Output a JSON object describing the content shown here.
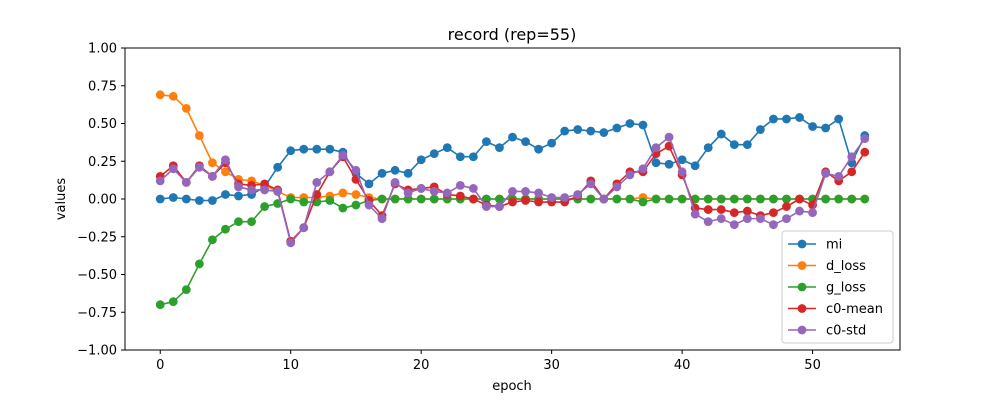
{
  "chart_data": {
    "type": "line",
    "title": "record (rep=55)",
    "xlabel": "epoch",
    "ylabel": "values",
    "xlim": [
      -2.7,
      56.7
    ],
    "ylim": [
      -1.0,
      1.0
    ],
    "xticks": [
      0,
      10,
      20,
      30,
      40,
      50
    ],
    "xtick_labels": [
      "0",
      "10",
      "20",
      "30",
      "40",
      "50"
    ],
    "yticks": [
      -1.0,
      -0.75,
      -0.5,
      -0.25,
      0.0,
      0.25,
      0.5,
      0.75,
      1.0
    ],
    "ytick_labels": [
      "−1.00",
      "−0.75",
      "−0.50",
      "−0.25",
      "0.00",
      "0.25",
      "0.50",
      "0.75",
      "1.00"
    ],
    "grid": false,
    "legend_position": "lower-right",
    "x": [
      0,
      1,
      2,
      3,
      4,
      5,
      6,
      7,
      8,
      9,
      10,
      11,
      12,
      13,
      14,
      15,
      16,
      17,
      18,
      19,
      20,
      21,
      22,
      23,
      24,
      25,
      26,
      27,
      28,
      29,
      30,
      31,
      32,
      33,
      34,
      35,
      36,
      37,
      38,
      39,
      40,
      41,
      42,
      43,
      44,
      45,
      46,
      47,
      48,
      49,
      50,
      51,
      52,
      53,
      54
    ],
    "series": [
      {
        "name": "mi",
        "color": "#1f77b4",
        "values": [
          0.0,
          0.01,
          0.0,
          -0.01,
          -0.01,
          0.03,
          0.02,
          0.03,
          0.08,
          0.21,
          0.32,
          0.33,
          0.33,
          0.33,
          0.31,
          0.17,
          0.1,
          0.17,
          0.19,
          0.17,
          0.26,
          0.3,
          0.34,
          0.28,
          0.28,
          0.38,
          0.34,
          0.41,
          0.38,
          0.33,
          0.37,
          0.45,
          0.46,
          0.45,
          0.44,
          0.47,
          0.5,
          0.49,
          0.24,
          0.23,
          0.26,
          0.22,
          0.34,
          0.43,
          0.36,
          0.36,
          0.46,
          0.53,
          0.53,
          0.54,
          0.48,
          0.47,
          0.53,
          0.24,
          0.42
        ]
      },
      {
        "name": "d_loss",
        "color": "#ff7f0e",
        "values": [
          0.69,
          0.68,
          0.6,
          0.42,
          0.24,
          0.18,
          0.13,
          0.12,
          0.09,
          0.05,
          0.01,
          0.01,
          0.01,
          0.02,
          0.04,
          0.03,
          0.01,
          0.0,
          0.0,
          0.0,
          0.0,
          0.0,
          0.0,
          0.0,
          0.0,
          0.0,
          0.0,
          0.0,
          0.0,
          0.0,
          0.0,
          0.0,
          0.0,
          0.0,
          0.0,
          0.0,
          0.0,
          0.01,
          0.0,
          0.0,
          0.0,
          0.0,
          0.0,
          0.0,
          0.0,
          0.0,
          0.0,
          0.0,
          0.0,
          0.0,
          0.0,
          0.0,
          0.0,
          0.0,
          0.0
        ]
      },
      {
        "name": "g_loss",
        "color": "#2ca02c",
        "values": [
          -0.7,
          -0.68,
          -0.6,
          -0.43,
          -0.27,
          -0.2,
          -0.15,
          -0.15,
          -0.05,
          -0.03,
          0.0,
          -0.02,
          -0.02,
          -0.01,
          -0.06,
          -0.04,
          -0.01,
          0.0,
          0.0,
          0.0,
          0.0,
          0.0,
          0.0,
          0.0,
          0.0,
          0.0,
          0.0,
          0.0,
          0.0,
          0.0,
          0.0,
          0.0,
          0.0,
          0.0,
          0.0,
          0.0,
          0.0,
          -0.02,
          0.0,
          0.0,
          0.0,
          0.0,
          0.0,
          0.0,
          0.0,
          0.0,
          0.0,
          0.0,
          0.0,
          0.0,
          0.0,
          0.0,
          0.0,
          0.0,
          0.0
        ]
      },
      {
        "name": "c0-mean",
        "color": "#d62728",
        "values": [
          0.15,
          0.22,
          0.11,
          0.22,
          0.15,
          0.24,
          0.1,
          0.09,
          0.1,
          0.06,
          -0.28,
          -0.19,
          0.03,
          0.18,
          0.28,
          0.13,
          -0.01,
          -0.11,
          0.1,
          0.06,
          0.07,
          0.08,
          0.03,
          0.02,
          0.0,
          -0.04,
          -0.05,
          -0.02,
          -0.01,
          -0.02,
          -0.02,
          -0.02,
          0.02,
          0.12,
          0.0,
          0.1,
          0.18,
          0.18,
          0.3,
          0.35,
          0.16,
          -0.06,
          -0.07,
          -0.07,
          -0.09,
          -0.08,
          -0.11,
          -0.09,
          -0.05,
          0.0,
          -0.04,
          0.18,
          0.12,
          0.18,
          0.31
        ]
      },
      {
        "name": "c0-std",
        "color": "#9467bd",
        "values": [
          0.12,
          0.2,
          0.11,
          0.21,
          0.15,
          0.26,
          0.08,
          0.06,
          0.06,
          0.05,
          -0.29,
          -0.19,
          0.11,
          0.18,
          0.29,
          0.19,
          -0.04,
          -0.13,
          0.11,
          0.04,
          0.07,
          0.05,
          0.04,
          0.09,
          0.07,
          -0.05,
          -0.05,
          0.05,
          0.05,
          0.04,
          0.01,
          0.01,
          0.03,
          0.1,
          0.0,
          0.08,
          0.16,
          0.2,
          0.34,
          0.41,
          0.18,
          -0.1,
          -0.15,
          -0.13,
          -0.17,
          -0.13,
          -0.13,
          -0.17,
          -0.13,
          -0.08,
          -0.09,
          0.17,
          0.15,
          0.28,
          0.4
        ]
      }
    ]
  }
}
